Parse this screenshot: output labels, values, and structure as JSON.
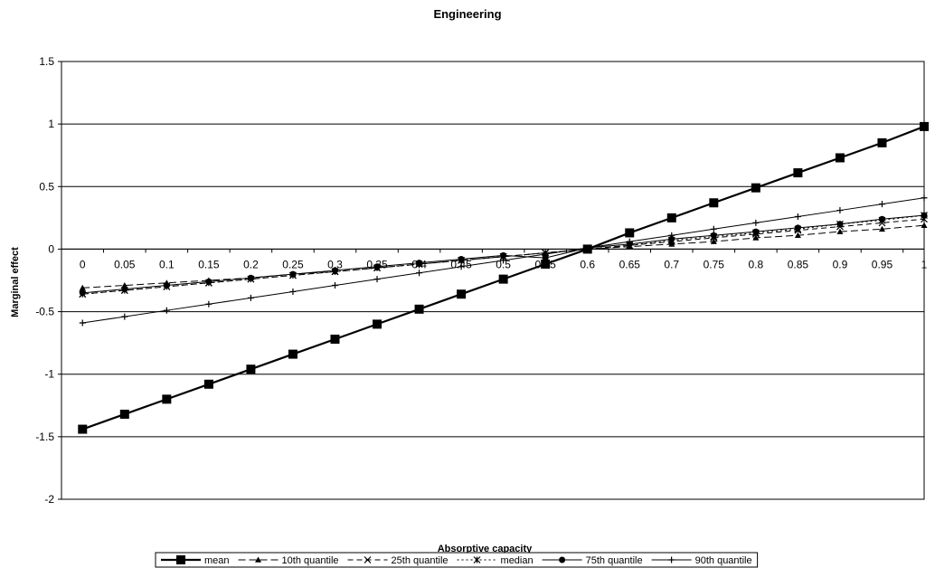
{
  "chart_data": {
    "type": "line",
    "title": "Engineering",
    "xlabel": "Absorptive capacity",
    "ylabel": "Marginal effect",
    "ylim": [
      -2,
      1.5
    ],
    "yticks": [
      "1.5",
      "1",
      "0.5",
      "0",
      "-0.5",
      "-1",
      "-1.5",
      "-2"
    ],
    "categories": [
      "0",
      "0.05",
      "0.1",
      "0.15",
      "0.2",
      "0.25",
      "0.3",
      "0.35",
      "0.4",
      "0.45",
      "0.5",
      "0.55",
      "0.6",
      "0.65",
      "0.7",
      "0.75",
      "0.8",
      "0.85",
      "0.9",
      "0.95",
      "1"
    ],
    "grid": "horizontal",
    "legend_position": "bottom",
    "series": [
      {
        "name": "mean",
        "marker": "square",
        "dash": "solid",
        "values": [
          -1.44,
          -1.32,
          -1.2,
          -1.08,
          -0.96,
          -0.84,
          -0.72,
          -0.6,
          -0.48,
          -0.36,
          -0.24,
          -0.12,
          0.0,
          0.13,
          0.25,
          0.37,
          0.49,
          0.61,
          0.73,
          0.85,
          0.98
        ]
      },
      {
        "name": "10th quantile",
        "marker": "triangle",
        "dash": "long-dash",
        "values": [
          -0.31,
          -0.29,
          -0.27,
          -0.25,
          -0.23,
          -0.2,
          -0.18,
          -0.15,
          -0.12,
          -0.09,
          -0.06,
          -0.03,
          0.0,
          0.02,
          0.04,
          0.06,
          0.09,
          0.11,
          0.14,
          0.16,
          0.19
        ]
      },
      {
        "name": "25th quantile",
        "marker": "x",
        "dash": "dash",
        "values": [
          -0.36,
          -0.33,
          -0.3,
          -0.27,
          -0.24,
          -0.21,
          -0.18,
          -0.15,
          -0.12,
          -0.09,
          -0.06,
          -0.03,
          0.0,
          0.03,
          0.06,
          0.09,
          0.12,
          0.15,
          0.18,
          0.21,
          0.24
        ]
      },
      {
        "name": "median",
        "marker": "star",
        "dash": "dot",
        "values": [
          -0.36,
          -0.33,
          -0.3,
          -0.27,
          -0.24,
          -0.21,
          -0.18,
          -0.15,
          -0.12,
          -0.09,
          -0.06,
          -0.03,
          0.0,
          0.03,
          0.07,
          0.1,
          0.13,
          0.16,
          0.2,
          0.23,
          0.27
        ]
      },
      {
        "name": "75th quantile",
        "marker": "circle",
        "dash": "solid",
        "values": [
          -0.35,
          -0.32,
          -0.29,
          -0.26,
          -0.23,
          -0.2,
          -0.17,
          -0.14,
          -0.11,
          -0.08,
          -0.05,
          -0.07,
          0.01,
          0.04,
          0.08,
          0.11,
          0.14,
          0.17,
          0.2,
          0.24,
          0.27
        ]
      },
      {
        "name": "90th quantile",
        "marker": "plus",
        "dash": "solid",
        "values": [
          -0.59,
          -0.54,
          -0.49,
          -0.44,
          -0.39,
          -0.34,
          -0.29,
          -0.24,
          -0.19,
          -0.14,
          -0.09,
          -0.04,
          0.01,
          0.06,
          0.11,
          0.16,
          0.21,
          0.26,
          0.31,
          0.36,
          0.41
        ]
      }
    ]
  }
}
